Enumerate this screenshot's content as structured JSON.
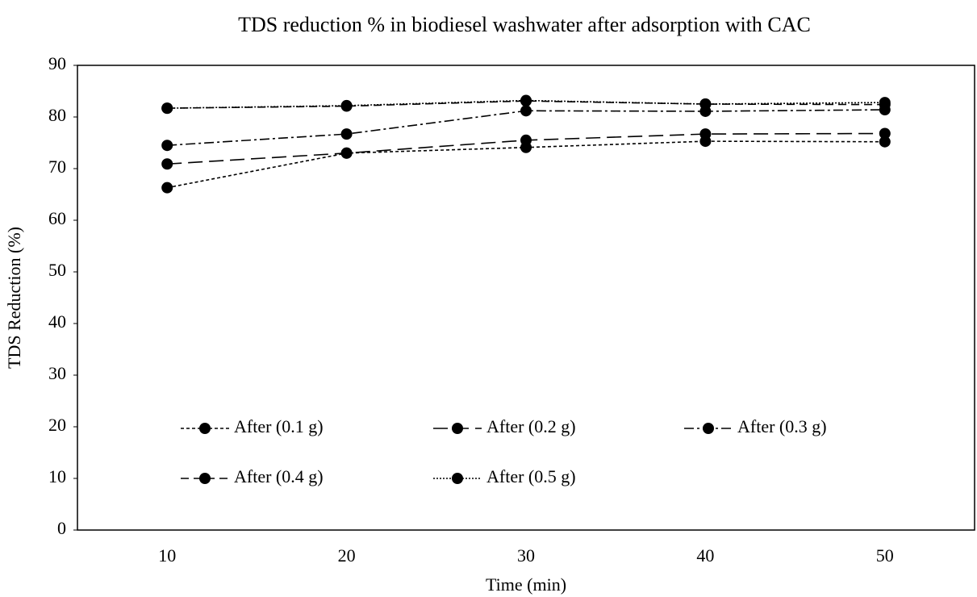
{
  "chart_data": {
    "type": "line",
    "title": "TDS reduction % in biodiesel washwater after adsorption with CAC",
    "x_label": "Time (min)",
    "y_label": "TDS Reduction (%)",
    "categories": [
      "10",
      "20",
      "30",
      "40",
      "50"
    ],
    "ylim": [
      0,
      90
    ],
    "yticks": [
      0,
      10,
      20,
      30,
      40,
      50,
      60,
      70,
      80,
      90
    ],
    "legend": "lower left",
    "series": [
      {
        "name": "After (0.1 g)",
        "color": "#000000",
        "dash": "4,3",
        "values": [
          66.3,
          73,
          74.1,
          75.3,
          75.2
        ]
      },
      {
        "name": "After (0.2 g)",
        "color": "#000000",
        "dash": "18,8",
        "values": [
          70.9,
          73,
          75.5,
          76.7,
          76.8
        ]
      },
      {
        "name": "After (0.3 g)",
        "color": "#000000",
        "dash": "12,4,3,4",
        "values": [
          74.5,
          76.7,
          81.2,
          81.1,
          81.4
        ]
      },
      {
        "name": "After (0.4 g)",
        "color": "#000000",
        "dash": "10,6",
        "values": [
          81.7,
          82.1,
          83.1,
          82.5,
          82.4
        ]
      },
      {
        "name": "After (0.5 g)",
        "color": "#000000",
        "dash": "2,2",
        "values": [
          81.7,
          82.2,
          83.2,
          82.5,
          82.8
        ]
      }
    ]
  }
}
